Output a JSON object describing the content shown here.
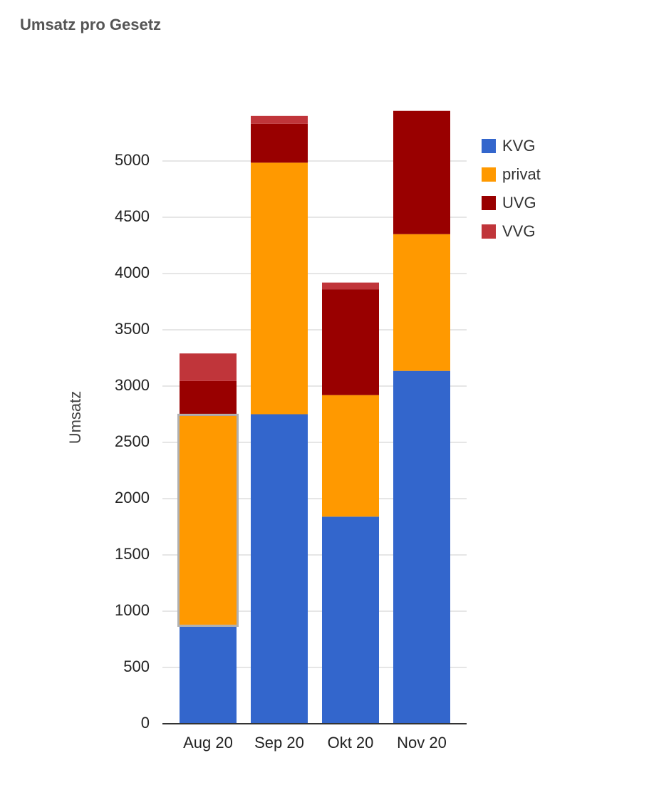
{
  "chart_data": {
    "type": "bar",
    "stacked": true,
    "title": "Umsatz pro Gesetz",
    "xlabel": "",
    "ylabel": "Umsatz",
    "categories": [
      "Aug 20",
      "Sep 20",
      "Okt 20",
      "Nov 20"
    ],
    "series": [
      {
        "name": "KVG",
        "color": "#3366cc",
        "values": [
          880,
          2750,
          1840,
          3135
        ]
      },
      {
        "name": "privat",
        "color": "#ff9900",
        "values": [
          1855,
          2235,
          1080,
          1215
        ]
      },
      {
        "name": "UVG",
        "color": "#990000",
        "values": [
          310,
          345,
          940,
          1095
        ]
      },
      {
        "name": "VVG",
        "color": "#c0353a",
        "values": [
          245,
          70,
          60,
          0
        ]
      }
    ],
    "ylim": [
      0,
      5500
    ],
    "yticks": [
      0,
      500,
      1000,
      1500,
      2000,
      2500,
      3000,
      3500,
      4000,
      4500,
      5000
    ],
    "grid": true,
    "legend_position": "right",
    "highlighted": {
      "category": "Aug 20",
      "series": "privat"
    }
  }
}
